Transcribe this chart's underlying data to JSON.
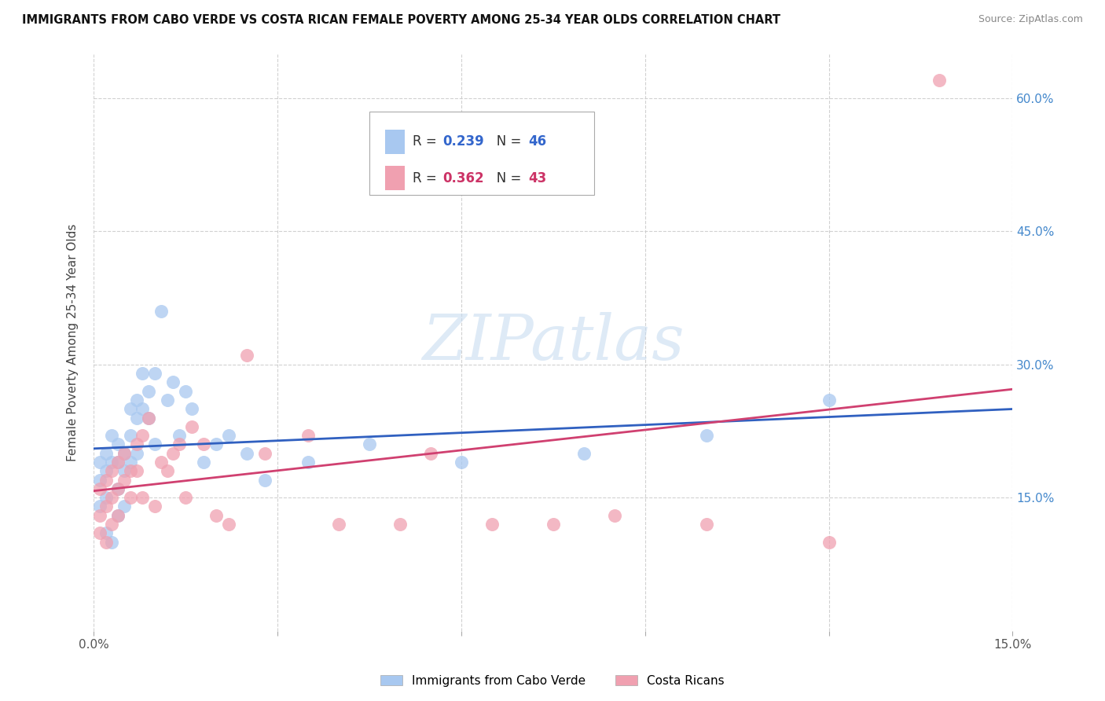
{
  "title": "IMMIGRANTS FROM CABO VERDE VS COSTA RICAN FEMALE POVERTY AMONG 25-34 YEAR OLDS CORRELATION CHART",
  "source": "Source: ZipAtlas.com",
  "ylabel": "Female Poverty Among 25-34 Year Olds",
  "xlim": [
    0.0,
    0.15
  ],
  "ylim": [
    0.0,
    0.65
  ],
  "ytick_vals": [
    0.15,
    0.3,
    0.45,
    0.6
  ],
  "ytick_labels_right": [
    "15.0%",
    "30.0%",
    "45.0%",
    "60.0%"
  ],
  "legend_blue_r": "0.239",
  "legend_blue_n": "46",
  "legend_pink_r": "0.362",
  "legend_pink_n": "43",
  "legend_label_blue": "Immigrants from Cabo Verde",
  "legend_label_pink": "Costa Ricans",
  "color_blue": "#A8C8F0",
  "color_pink": "#F0A0B0",
  "color_line_blue": "#3060C0",
  "color_line_pink": "#D04070",
  "watermark": "ZIPatlas",
  "blue_x": [
    0.001,
    0.001,
    0.001,
    0.002,
    0.002,
    0.002,
    0.002,
    0.003,
    0.003,
    0.003,
    0.004,
    0.004,
    0.004,
    0.004,
    0.005,
    0.005,
    0.005,
    0.006,
    0.006,
    0.006,
    0.007,
    0.007,
    0.007,
    0.008,
    0.008,
    0.009,
    0.009,
    0.01,
    0.01,
    0.011,
    0.012,
    0.013,
    0.014,
    0.015,
    0.016,
    0.018,
    0.02,
    0.022,
    0.025,
    0.028,
    0.035,
    0.045,
    0.06,
    0.08,
    0.1,
    0.12
  ],
  "blue_y": [
    0.19,
    0.17,
    0.14,
    0.2,
    0.18,
    0.15,
    0.11,
    0.22,
    0.19,
    0.1,
    0.21,
    0.19,
    0.16,
    0.13,
    0.18,
    0.2,
    0.14,
    0.25,
    0.22,
    0.19,
    0.26,
    0.24,
    0.2,
    0.29,
    0.25,
    0.27,
    0.24,
    0.29,
    0.21,
    0.36,
    0.26,
    0.28,
    0.22,
    0.27,
    0.25,
    0.19,
    0.21,
    0.22,
    0.2,
    0.17,
    0.19,
    0.21,
    0.19,
    0.2,
    0.22,
    0.26
  ],
  "pink_x": [
    0.001,
    0.001,
    0.001,
    0.002,
    0.002,
    0.002,
    0.003,
    0.003,
    0.003,
    0.004,
    0.004,
    0.004,
    0.005,
    0.005,
    0.006,
    0.006,
    0.007,
    0.007,
    0.008,
    0.008,
    0.009,
    0.01,
    0.011,
    0.012,
    0.013,
    0.014,
    0.015,
    0.016,
    0.018,
    0.02,
    0.022,
    0.025,
    0.028,
    0.035,
    0.04,
    0.05,
    0.055,
    0.065,
    0.075,
    0.085,
    0.1,
    0.12,
    0.138
  ],
  "pink_y": [
    0.13,
    0.16,
    0.11,
    0.17,
    0.14,
    0.1,
    0.18,
    0.15,
    0.12,
    0.19,
    0.16,
    0.13,
    0.2,
    0.17,
    0.18,
    0.15,
    0.21,
    0.18,
    0.22,
    0.15,
    0.24,
    0.14,
    0.19,
    0.18,
    0.2,
    0.21,
    0.15,
    0.23,
    0.21,
    0.13,
    0.12,
    0.31,
    0.2,
    0.22,
    0.12,
    0.12,
    0.2,
    0.12,
    0.12,
    0.13,
    0.12,
    0.1,
    0.62
  ]
}
